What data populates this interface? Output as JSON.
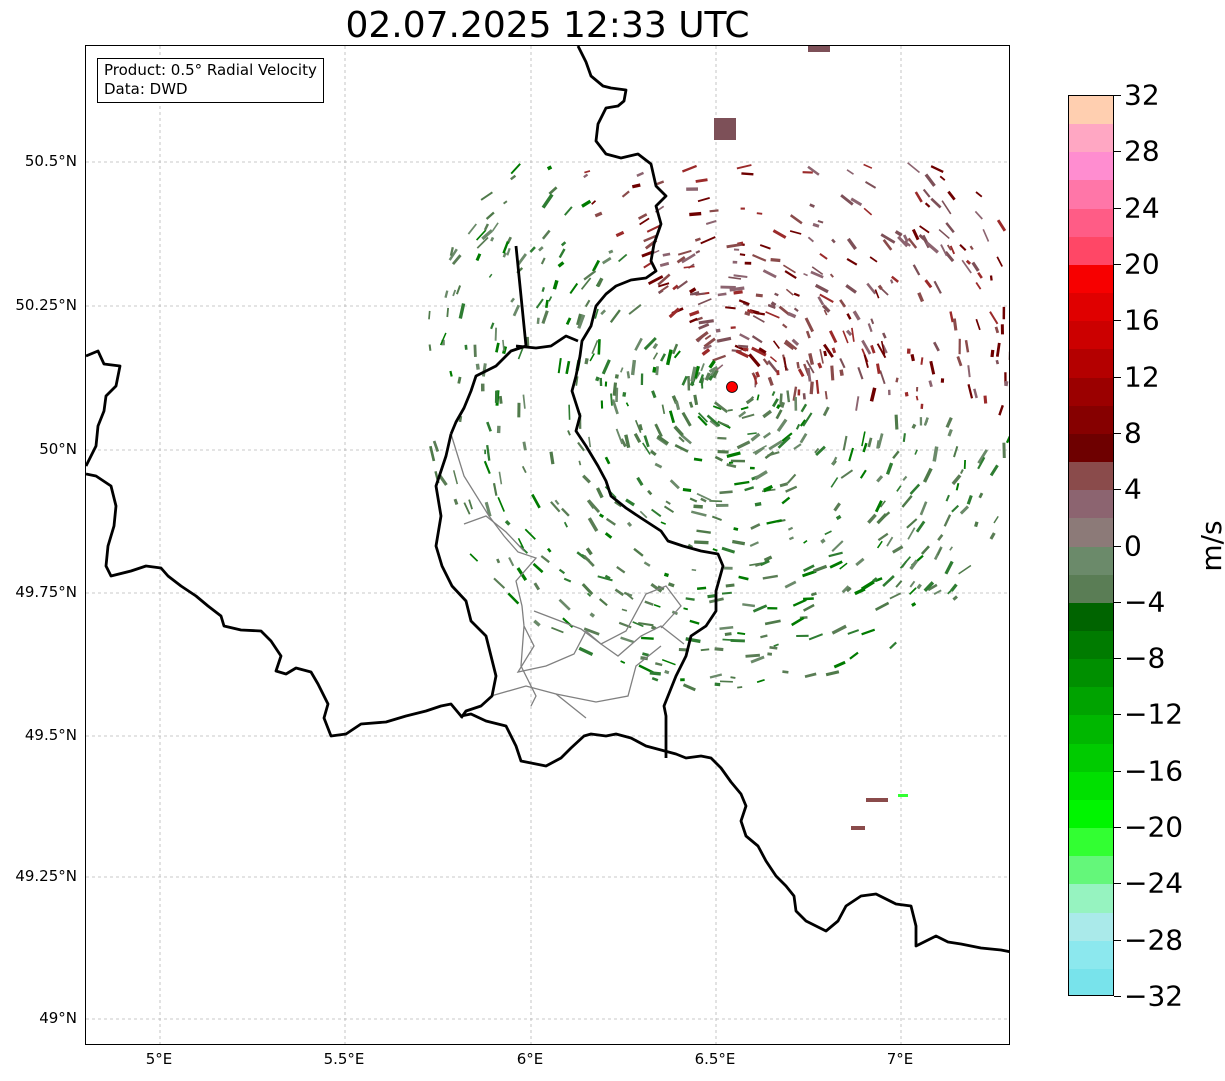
{
  "title": "02.07.2025 12:33 UTC",
  "info_box": {
    "product": "Product: 0.5° Radial Velocity",
    "data": "Data: DWD"
  },
  "axes": {
    "y_ticks": [
      "50.5°N",
      "50.25°N",
      "50°N",
      "49.75°N",
      "49.5°N",
      "49.25°N",
      "49°N"
    ],
    "x_ticks": [
      "5°E",
      "5.5°E",
      "6°E",
      "6.5°E",
      "7°E"
    ]
  },
  "colorbar": {
    "unit": "m/s",
    "tick_labels": [
      "32",
      "28",
      "24",
      "20",
      "16",
      "12",
      "8",
      "4",
      "0",
      "−4",
      "−8",
      "−12",
      "−16",
      "−20",
      "−24",
      "−28",
      "−32"
    ],
    "colors": [
      "#ffcfb0",
      "#ffa7c3",
      "#ff8dd0",
      "#ff76a8",
      "#ff5c86",
      "#ff4766",
      "#f70000",
      "#e00000",
      "#cc0000",
      "#b40000",
      "#9b0000",
      "#860000",
      "#6e0000",
      "#8a4b4b",
      "#8c6470",
      "#8c7a78",
      "#6b8a6a",
      "#5a7d55",
      "#006400",
      "#007b00",
      "#008f00",
      "#00a300",
      "#00b700",
      "#00cb00",
      "#00e000",
      "#00f500",
      "#32ff32",
      "#64f77a",
      "#96f3c0",
      "#aaeaea",
      "#8ce8ee",
      "#78e3eb"
    ]
  },
  "radar": {
    "site_marker_color": "#ff0000"
  }
}
